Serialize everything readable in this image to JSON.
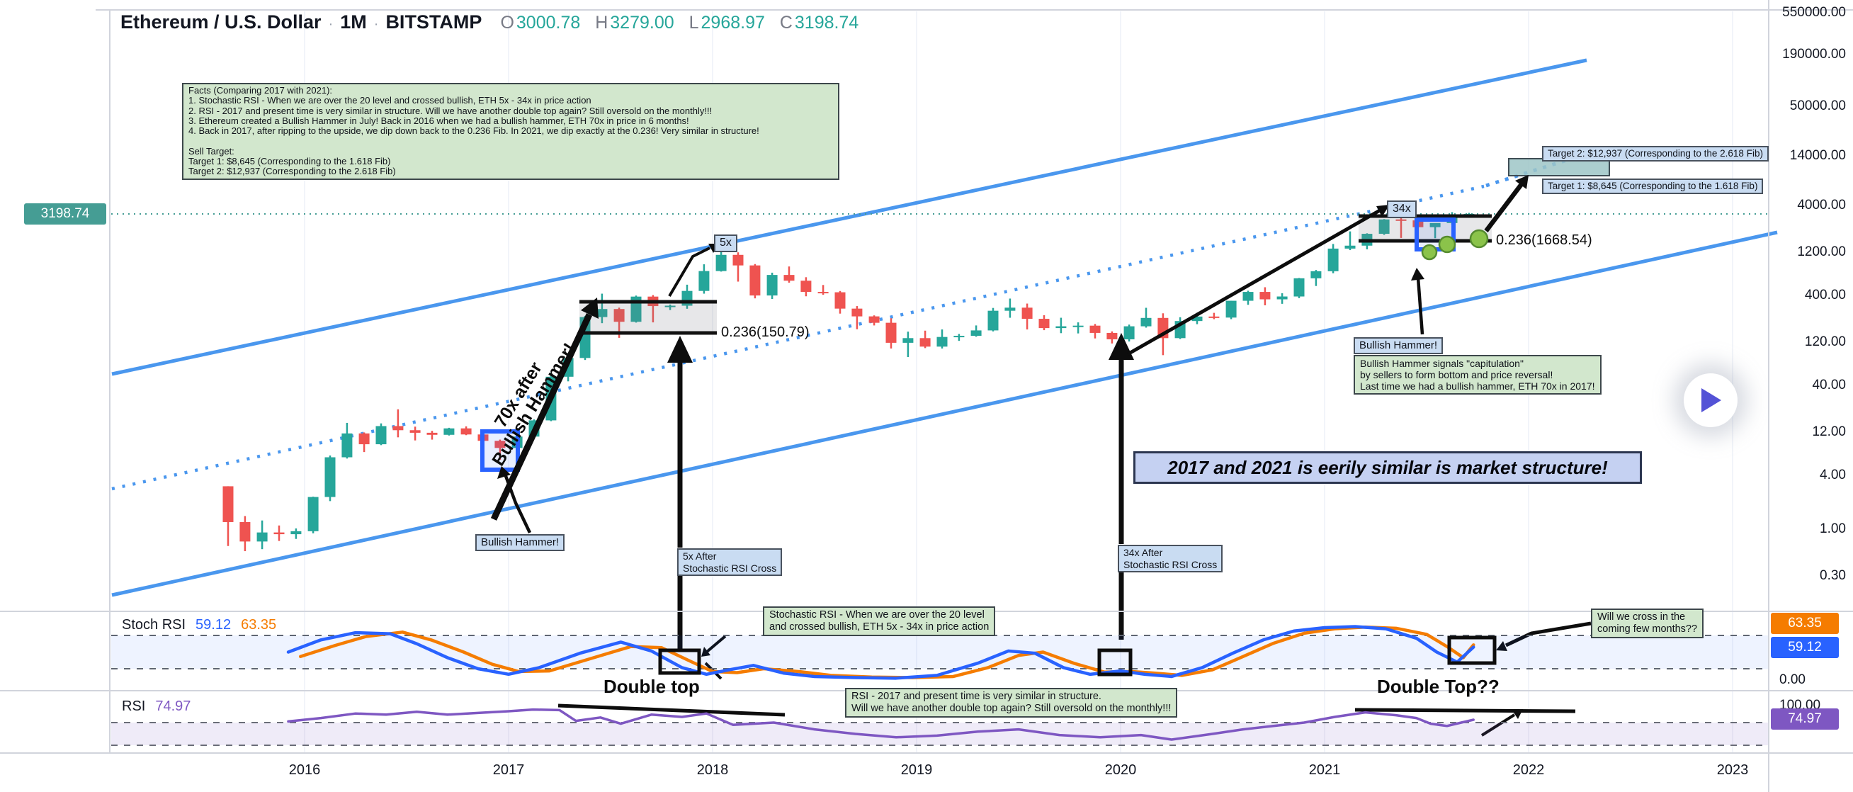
{
  "header": {
    "symbol": "Ethereum / U.S. Dollar",
    "separator": "·",
    "timeframe": "1M",
    "exchange": "BITSTAMP",
    "o_label": "O",
    "o_value": "3000.78",
    "h_label": "H",
    "h_value": "3279.00",
    "l_label": "L",
    "l_value": "2968.97",
    "c_label": "C",
    "c_value": "3198.74"
  },
  "facts_box": {
    "lines": [
      "Facts (Comparing 2017 with 2021):",
      "1. Stochastic RSI - When we are over the 20 level and crossed bullish, ETH 5x - 34x in price action",
      "2. RSI - 2017 and present time is very similar in structure. Will we have another double top again? Still oversold on the monthly!!!",
      "3. Ethereum created a Bullish Hammer in July! Back in 2016 when we had a bullish hammer, ETH 70x in price in 6 months!",
      "4. Back in 2017, after ripping to the upside, we dip down back to the 0.236 Fib. In 2021, we dip exactly at the 0.236! Very similar in structure!",
      "",
      "Sell Target:",
      "Target 1: $8,645 (Corresponding to the 1.618 Fib)",
      "Target 2: $12,937 (Corresponding to the 2.618 Fib)"
    ]
  },
  "annotations": {
    "bullish_hammer_2016": "Bullish Hammer!",
    "label_5x": "5x",
    "fib_2017": "0.236(150.79)",
    "box_5x_after": {
      "lines": [
        "5x After",
        "Stochastic RSI Cross"
      ]
    },
    "rotated_70x": {
      "lines": [
        "70x after",
        "Bullish Hammer!"
      ]
    },
    "label_34x": "34x",
    "box_34x_after": {
      "lines": [
        "34x After",
        "Stochastic RSI Cross"
      ]
    },
    "fib_2021": "0.236(1668.54)",
    "bullish_hammer_2021_title": "Bullish Hammer!",
    "bullish_hammer_2021_note": {
      "lines": [
        "Bullish Hammer signals \"capitulation\"",
        "by sellers to form bottom and price reversal!",
        "Last time we had a bullish hammer, ETH 70x in 2017!"
      ]
    },
    "target_2": "Target 2: $12,937 (Corresponding to the 2.618 Fib)",
    "target_1": "Target 1: $8,645 (Corresponding to the 1.618 Fib)",
    "similarity_banner": "2017 and 2021 is eerily similar is market structure!",
    "stoch_note": {
      "lines": [
        "Stochastic RSI - When we are over the 20 level",
        "and crossed bullish, ETH 5x - 34x in price action"
      ]
    },
    "will_we_cross": {
      "lines": [
        "Will we cross in the",
        "coming few months??"
      ]
    },
    "rsi_note": {
      "lines": [
        "RSI - 2017 and present time is very similar in structure.",
        "Will we have another double top again? Still oversold on the monthly!!!"
      ]
    },
    "double_top_2017": "Double top",
    "double_top_2021": "Double Top??"
  },
  "stoch_panel": {
    "title": "Stoch RSI",
    "k_value": "59.12",
    "d_value": "63.35",
    "zero_label": "0.00"
  },
  "rsi_panel": {
    "title": "RSI",
    "value": "74.97",
    "hundred_label": "100.00"
  },
  "price_scale": {
    "current_price": "3198.74"
  },
  "chart_data": {
    "type": "candlestick",
    "title": "Ethereum / U.S. Dollar · 1M · BITSTAMP",
    "scale": "log",
    "current_ohlc": {
      "open": 3000.78,
      "high": 3279.0,
      "low": 2968.97,
      "close": 3198.74
    },
    "price_axis_ticks": [
      550000,
      190000,
      50000,
      14000,
      4000,
      1200,
      400,
      120,
      40,
      12,
      4,
      1,
      0.3
    ],
    "time_axis_years": [
      2016,
      2017,
      2018,
      2019,
      2020,
      2021,
      2022,
      2023
    ],
    "colors": {
      "up": "#26a69a",
      "down": "#ef5350",
      "channel": "#4a97ee",
      "stoch_k": "#2962ff",
      "stoch_d": "#f57c00",
      "rsi": "#7e57c2",
      "last_price": "#459d94"
    },
    "fib_levels": {
      "fib_0236_2017": 150.79,
      "fib_0236_2021": 1668.54,
      "target_1": 8645,
      "target_2": 12937
    },
    "candles": [
      [
        2015.625,
        3.0,
        3.0,
        0.65,
        1.2
      ],
      [
        2015.708,
        1.2,
        1.4,
        0.57,
        0.73
      ],
      [
        2015.792,
        0.73,
        1.25,
        0.6,
        0.92
      ],
      [
        2015.875,
        0.92,
        1.1,
        0.74,
        0.88
      ],
      [
        2015.958,
        0.88,
        1.02,
        0.78,
        0.95
      ],
      [
        2016.042,
        0.95,
        2.3,
        0.9,
        2.28
      ],
      [
        2016.125,
        2.28,
        6.6,
        2.05,
        6.3
      ],
      [
        2016.208,
        6.3,
        15.2,
        6.1,
        11.6
      ],
      [
        2016.292,
        11.6,
        11.9,
        7.2,
        8.8
      ],
      [
        2016.375,
        8.8,
        15.0,
        8.6,
        14.0
      ],
      [
        2016.458,
        14.0,
        21.5,
        10.5,
        12.6
      ],
      [
        2016.542,
        12.6,
        13.8,
        9.7,
        11.8
      ],
      [
        2016.625,
        11.8,
        12.4,
        9.9,
        11.2
      ],
      [
        2016.708,
        11.2,
        13.4,
        11.0,
        13.2
      ],
      [
        2016.792,
        13.2,
        13.9,
        11.1,
        11.3
      ],
      [
        2016.875,
        11.3,
        11.9,
        9.1,
        9.6
      ],
      [
        2016.958,
        9.6,
        9.9,
        5.9,
        8.0
      ],
      [
        2017.042,
        8.0,
        11.3,
        7.9,
        10.7
      ],
      [
        2017.125,
        10.7,
        16.6,
        10.2,
        16.2
      ],
      [
        2017.208,
        16.2,
        55,
        15.9,
        49.5
      ],
      [
        2017.292,
        49.5,
        90,
        44,
        80
      ],
      [
        2017.375,
        80,
        235,
        76,
        228
      ],
      [
        2017.458,
        228,
        415,
        195,
        280
      ],
      [
        2017.542,
        280,
        290,
        134,
        202
      ],
      [
        2017.625,
        202,
        395,
        198,
        385
      ],
      [
        2017.708,
        385,
        400,
        199,
        302
      ],
      [
        2017.792,
        302,
        314,
        273,
        305
      ],
      [
        2017.875,
        305,
        522,
        282,
        445
      ],
      [
        2017.958,
        445,
        880,
        415,
        740
      ],
      [
        2018.042,
        740,
        1432,
        730,
        1120
      ],
      [
        2018.125,
        1120,
        1195,
        565,
        855
      ],
      [
        2018.208,
        855,
        885,
        368,
        396
      ],
      [
        2018.292,
        396,
        710,
        362,
        670
      ],
      [
        2018.375,
        670,
        832,
        550,
        578
      ],
      [
        2018.458,
        578,
        632,
        388,
        434
      ],
      [
        2018.542,
        434,
        518,
        403,
        430
      ],
      [
        2018.625,
        430,
        444,
        249,
        283
      ],
      [
        2018.708,
        283,
        302,
        167,
        232
      ],
      [
        2018.792,
        232,
        238,
        184,
        197
      ],
      [
        2018.875,
        197,
        221,
        102,
        118
      ],
      [
        2018.958,
        118,
        157,
        82,
        133
      ],
      [
        2019.042,
        133,
        161,
        103,
        107
      ],
      [
        2019.125,
        107,
        166,
        102,
        137
      ],
      [
        2019.208,
        137,
        148,
        124,
        141
      ],
      [
        2019.292,
        141,
        184,
        138,
        162
      ],
      [
        2019.375,
        162,
        288,
        158,
        268
      ],
      [
        2019.458,
        268,
        366,
        224,
        290
      ],
      [
        2019.542,
        290,
        322,
        166,
        218
      ],
      [
        2019.625,
        218,
        239,
        163,
        172
      ],
      [
        2019.708,
        172,
        224,
        151,
        180
      ],
      [
        2019.792,
        180,
        199,
        150,
        183
      ],
      [
        2019.875,
        183,
        191,
        132,
        152
      ],
      [
        2019.958,
        152,
        158,
        116,
        129
      ],
      [
        2020.042,
        129,
        188,
        122,
        180
      ],
      [
        2020.125,
        180,
        289,
        174,
        223
      ],
      [
        2020.208,
        223,
        251,
        86,
        133
      ],
      [
        2020.292,
        133,
        227,
        130,
        206
      ],
      [
        2020.375,
        206,
        254,
        190,
        231
      ],
      [
        2020.458,
        231,
        254,
        216,
        225
      ],
      [
        2020.542,
        225,
        346,
        216,
        346
      ],
      [
        2020.625,
        346,
        447,
        312,
        434
      ],
      [
        2020.708,
        434,
        489,
        308,
        359
      ],
      [
        2020.792,
        359,
        420,
        320,
        386
      ],
      [
        2020.875,
        386,
        620,
        370,
        615
      ],
      [
        2020.958,
        615,
        760,
        505,
        737
      ],
      [
        2021.042,
        737,
        1480,
        700,
        1315
      ],
      [
        2021.125,
        1315,
        2042,
        1265,
        1418
      ],
      [
        2021.208,
        1418,
        1945,
        1290,
        1920
      ],
      [
        2021.292,
        1920,
        2800,
        1870,
        2773
      ],
      [
        2021.375,
        2773,
        4380,
        1728,
        2707
      ],
      [
        2021.458,
        2707,
        2892,
        1700,
        2275
      ],
      [
        2021.542,
        2275,
        2460,
        1715,
        2530
      ],
      [
        2021.625,
        2530,
        3340,
        2435,
        3001
      ],
      [
        2021.708,
        3000.78,
        3279.0,
        2968.97,
        3198.74
      ]
    ],
    "indicators": {
      "stoch_rsi": {
        "bands": [
          80,
          20
        ],
        "current_k": 59.12,
        "current_d": 63.35,
        "k": [
          [
            2015.92,
            50
          ],
          [
            2016.08,
            72
          ],
          [
            2016.25,
            85
          ],
          [
            2016.42,
            83
          ],
          [
            2016.55,
            65
          ],
          [
            2016.7,
            40
          ],
          [
            2016.85,
            20
          ],
          [
            2017.0,
            10
          ],
          [
            2017.15,
            22
          ],
          [
            2017.35,
            48
          ],
          [
            2017.55,
            68
          ],
          [
            2017.7,
            52
          ],
          [
            2017.85,
            22
          ],
          [
            2017.97,
            10
          ],
          [
            2018.08,
            18
          ],
          [
            2018.2,
            26
          ],
          [
            2018.35,
            12
          ],
          [
            2018.5,
            6
          ],
          [
            2018.7,
            4
          ],
          [
            2018.9,
            3
          ],
          [
            2019.1,
            8
          ],
          [
            2019.3,
            30
          ],
          [
            2019.45,
            52
          ],
          [
            2019.58,
            48
          ],
          [
            2019.72,
            22
          ],
          [
            2019.85,
            10
          ],
          [
            2020.0,
            16
          ],
          [
            2020.12,
            10
          ],
          [
            2020.25,
            6
          ],
          [
            2020.4,
            22
          ],
          [
            2020.55,
            48
          ],
          [
            2020.7,
            72
          ],
          [
            2020.85,
            88
          ],
          [
            2021.0,
            94
          ],
          [
            2021.15,
            96
          ],
          [
            2021.3,
            92
          ],
          [
            2021.45,
            75
          ],
          [
            2021.55,
            50
          ],
          [
            2021.65,
            32
          ],
          [
            2021.73,
            59
          ]
        ],
        "d": [
          [
            2015.98,
            42
          ],
          [
            2016.15,
            62
          ],
          [
            2016.3,
            78
          ],
          [
            2016.48,
            86
          ],
          [
            2016.62,
            72
          ],
          [
            2016.78,
            50
          ],
          [
            2016.92,
            28
          ],
          [
            2017.05,
            15
          ],
          [
            2017.2,
            16
          ],
          [
            2017.4,
            38
          ],
          [
            2017.6,
            60
          ],
          [
            2017.75,
            58
          ],
          [
            2017.9,
            32
          ],
          [
            2018.0,
            15
          ],
          [
            2018.12,
            13
          ],
          [
            2018.25,
            20
          ],
          [
            2018.42,
            15
          ],
          [
            2018.58,
            8
          ],
          [
            2018.78,
            5
          ],
          [
            2018.98,
            4
          ],
          [
            2019.18,
            6
          ],
          [
            2019.35,
            22
          ],
          [
            2019.5,
            44
          ],
          [
            2019.62,
            50
          ],
          [
            2019.77,
            30
          ],
          [
            2019.92,
            14
          ],
          [
            2020.05,
            15
          ],
          [
            2020.17,
            12
          ],
          [
            2020.3,
            8
          ],
          [
            2020.45,
            18
          ],
          [
            2020.6,
            42
          ],
          [
            2020.75,
            66
          ],
          [
            2020.9,
            84
          ],
          [
            2021.05,
            92
          ],
          [
            2021.2,
            95
          ],
          [
            2021.35,
            93
          ],
          [
            2021.5,
            82
          ],
          [
            2021.6,
            60
          ],
          [
            2021.68,
            40
          ],
          [
            2021.73,
            63
          ]
        ]
      },
      "rsi": {
        "bands": [
          70,
          30
        ],
        "current": 74.97,
        "values": [
          [
            2015.92,
            72
          ],
          [
            2016.08,
            78
          ],
          [
            2016.25,
            86
          ],
          [
            2016.4,
            84
          ],
          [
            2016.55,
            89
          ],
          [
            2016.7,
            84
          ],
          [
            2016.85,
            87
          ],
          [
            2017.0,
            90
          ],
          [
            2017.12,
            93
          ],
          [
            2017.25,
            92
          ],
          [
            2017.33,
            73
          ],
          [
            2017.45,
            79
          ],
          [
            2017.55,
            68
          ],
          [
            2017.7,
            84
          ],
          [
            2017.85,
            80
          ],
          [
            2017.97,
            86
          ],
          [
            2018.1,
            66
          ],
          [
            2018.3,
            70
          ],
          [
            2018.5,
            58
          ],
          [
            2018.7,
            50
          ],
          [
            2018.9,
            44
          ],
          [
            2019.1,
            47
          ],
          [
            2019.3,
            54
          ],
          [
            2019.5,
            58
          ],
          [
            2019.7,
            48
          ],
          [
            2019.9,
            44
          ],
          [
            2020.1,
            48
          ],
          [
            2020.25,
            40
          ],
          [
            2020.45,
            50
          ],
          [
            2020.6,
            58
          ],
          [
            2020.75,
            64
          ],
          [
            2020.9,
            70
          ],
          [
            2021.05,
            80
          ],
          [
            2021.2,
            88
          ],
          [
            2021.35,
            83
          ],
          [
            2021.45,
            78
          ],
          [
            2021.52,
            68
          ],
          [
            2021.6,
            64
          ],
          [
            2021.67,
            70
          ],
          [
            2021.73,
            75
          ]
        ]
      }
    }
  }
}
